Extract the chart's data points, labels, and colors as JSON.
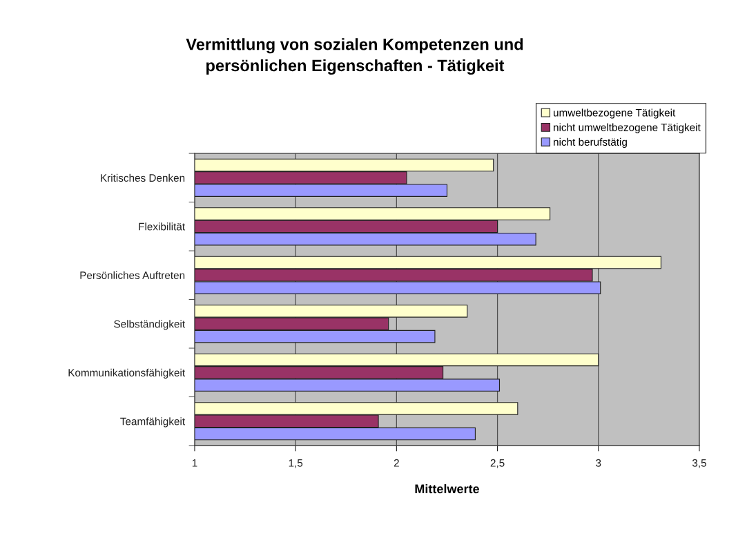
{
  "chart_data": {
    "type": "bar",
    "orientation": "horizontal",
    "title": "Vermittlung von sozialen Kompetenzen und\npersönlichen Eigenschaften - Tätigkeit",
    "xlabel": "Mittelwerte",
    "categories": [
      "Kritisches Denken",
      "Flexibilität",
      "Persönliches Auftreten",
      "Selbständigkeit",
      "Kommunikationsfähigkeit",
      "Teamfähigkeit"
    ],
    "series": [
      {
        "name": "umweltbezogene Tätigkeit",
        "color": "#ffffcc",
        "values": [
          2.48,
          2.76,
          3.31,
          2.35,
          3.0,
          2.6
        ]
      },
      {
        "name": "nicht umweltbezogene Tätigkeit",
        "color": "#993366",
        "values": [
          2.05,
          2.5,
          2.97,
          1.96,
          2.23,
          1.91
        ]
      },
      {
        "name": "nicht berufstätig",
        "color": "#9999ff",
        "values": [
          2.25,
          2.69,
          3.01,
          2.19,
          2.51,
          2.39
        ]
      }
    ],
    "xlim": [
      1,
      3.5
    ],
    "xticks": [
      1,
      {
        "value": 1.5,
        "label": "1,5"
      },
      2,
      {
        "value": 2.5,
        "label": "2,5"
      },
      3,
      {
        "value": 3.5,
        "label": "3,5"
      }
    ],
    "grid": "x",
    "legend": "top right"
  }
}
